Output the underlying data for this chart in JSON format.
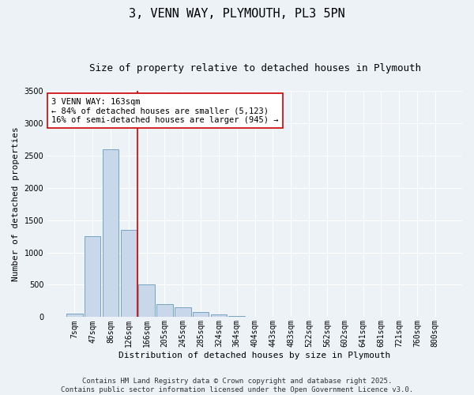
{
  "title": "3, VENN WAY, PLYMOUTH, PL3 5PN",
  "subtitle": "Size of property relative to detached houses in Plymouth",
  "xlabel": "Distribution of detached houses by size in Plymouth",
  "ylabel": "Number of detached properties",
  "bar_color": "#c8d8ea",
  "bar_edge_color": "#6699bb",
  "bins": [
    "7sqm",
    "47sqm",
    "86sqm",
    "126sqm",
    "166sqm",
    "205sqm",
    "245sqm",
    "285sqm",
    "324sqm",
    "364sqm",
    "404sqm",
    "443sqm",
    "483sqm",
    "522sqm",
    "562sqm",
    "602sqm",
    "641sqm",
    "681sqm",
    "721sqm",
    "760sqm",
    "800sqm"
  ],
  "values": [
    50,
    1250,
    2600,
    1350,
    500,
    200,
    150,
    80,
    40,
    15,
    8,
    3,
    2,
    1,
    0,
    0,
    0,
    0,
    0,
    0,
    0
  ],
  "vline_color": "#cc0000",
  "vline_x_index": 3.5,
  "annotation_text": "3 VENN WAY: 163sqm\n← 84% of detached houses are smaller (5,123)\n16% of semi-detached houses are larger (945) →",
  "annotation_box_facecolor": "#ffffff",
  "annotation_box_edgecolor": "#cc0000",
  "ylim": [
    0,
    3500
  ],
  "yticks": [
    0,
    500,
    1000,
    1500,
    2000,
    2500,
    3000,
    3500
  ],
  "footer_text": "Contains HM Land Registry data © Crown copyright and database right 2025.\nContains public sector information licensed under the Open Government Licence v3.0.",
  "background_color": "#edf2f7",
  "grid_color": "#ffffff",
  "title_fontsize": 11,
  "subtitle_fontsize": 9,
  "axis_label_fontsize": 8,
  "tick_fontsize": 7,
  "annotation_fontsize": 7.5,
  "footer_fontsize": 6.5
}
